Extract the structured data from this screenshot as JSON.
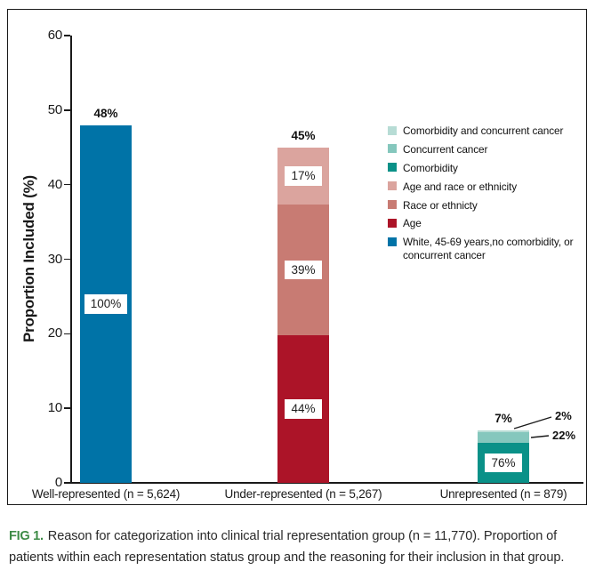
{
  "figure": {
    "caption_tag": "FIG 1.",
    "caption_text": "Reason for categorization into clinical trial representation group (n = 11,770). Proportion of patients within each representation status group and the reasoning for their inclusion in that group."
  },
  "chart_data": {
    "type": "bar",
    "stacked": true,
    "title": "",
    "xlabel": "",
    "ylabel": "Proportion Included (%)",
    "ylim": [
      0,
      60
    ],
    "yticks": [
      0,
      10,
      20,
      30,
      40,
      50,
      60
    ],
    "grid": false,
    "legend_position": "upper-right",
    "categories": [
      "Well-represented (n = 5,624)",
      "Under-represented (n = 5,267)",
      "Unrepresented (n = 879)"
    ],
    "bars": [
      {
        "category": "Well-represented (n = 5,624)",
        "total_value": 48,
        "total_label": "48%",
        "segments": [
          {
            "name": "White, 45-69 years,no comorbidity, or concurrent cancer",
            "share_pct": 100,
            "label": "100%",
            "color": "#0073a7",
            "label_style": "box"
          }
        ]
      },
      {
        "category": "Under-represented (n = 5,267)",
        "total_value": 45,
        "total_label": "45%",
        "segments": [
          {
            "name": "Age",
            "share_pct": 44,
            "label": "44%",
            "color": "#ac1428",
            "label_style": "box"
          },
          {
            "name": "Race or ethnicty",
            "share_pct": 39,
            "label": "39%",
            "color": "#c87b73",
            "label_style": "box"
          },
          {
            "name": "Age and race or ethnicity",
            "share_pct": 17,
            "label": "17%",
            "color": "#dba49e",
            "label_style": "box"
          }
        ]
      },
      {
        "category": "Unrepresented (n = 879)",
        "total_value": 7,
        "total_label": "7%",
        "segments": [
          {
            "name": "Comorbidity",
            "share_pct": 76,
            "label": "76%",
            "color": "#0a9188",
            "label_style": "box"
          },
          {
            "name": "Concurrent cancer",
            "share_pct": 22,
            "label": "22%",
            "color": "#85c7bd",
            "label_style": "callout"
          },
          {
            "name": "Comorbidity and concurrent cancer",
            "share_pct": 2,
            "label": "2%",
            "color": "#b7dcd5",
            "label_style": "callout"
          }
        ]
      }
    ],
    "legend": [
      {
        "label": "Comorbidity and concurrent cancer",
        "color": "#b7dcd5"
      },
      {
        "label": "Concurrent cancer",
        "color": "#85c7bd"
      },
      {
        "label": "Comorbidity",
        "color": "#0a9188"
      },
      {
        "label": "Age and race or ethnicity",
        "color": "#dba49e"
      },
      {
        "label": "Race or ethnicty",
        "color": "#c87b73"
      },
      {
        "label": "Age",
        "color": "#ac1428"
      },
      {
        "label": "White, 45-69 years,no comorbidity, or concurrent cancer",
        "color": "#0073a7"
      }
    ]
  }
}
